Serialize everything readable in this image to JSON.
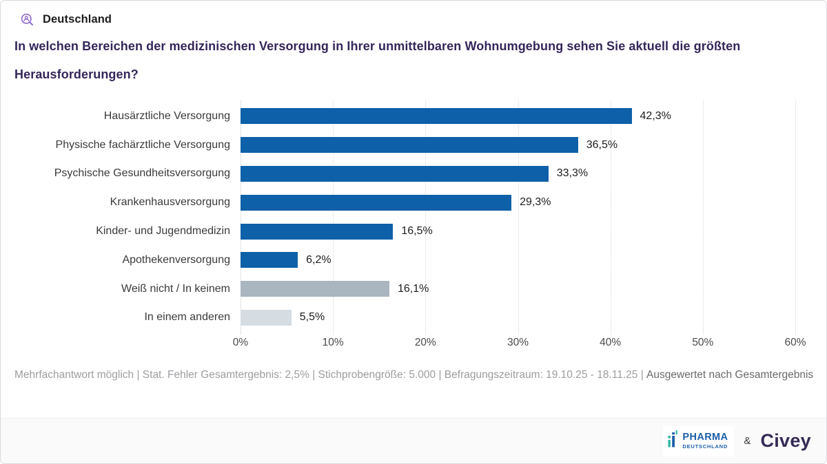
{
  "header": {
    "region_label": "Deutschland"
  },
  "question": {
    "title": "In welchen Bereichen der medizinischen Versorgung in Ihrer unmittelbaren Wohnumgebung sehen Sie aktuell die größten Herausforderungen?"
  },
  "chart_data": {
    "type": "bar",
    "orientation": "horizontal",
    "title": "In welchen Bereichen der medizinischen Versorgung in Ihrer unmittelbaren Wohnumgebung sehen Sie aktuell die größten Herausforderungen?",
    "categories": [
      "Hausärztliche Versorgung",
      "Physische fachärztliche Versorgung",
      "Psychische Gesundheitsversorgung",
      "Krankenhausversorgung",
      "Kinder- und Jugendmedizin",
      "Apothekenversorgung",
      "Weiß nicht / In keinem",
      "In einem anderen"
    ],
    "values": [
      42.3,
      36.5,
      33.3,
      29.3,
      16.5,
      6.2,
      16.1,
      5.5
    ],
    "value_labels": [
      "42,3%",
      "36,5%",
      "33,3%",
      "29,3%",
      "16,5%",
      "6,2%",
      "16,1%",
      "5,5%"
    ],
    "bar_colors": [
      "#0e60a8",
      "#0e60a8",
      "#0e60a8",
      "#0e60a8",
      "#0e60a8",
      "#0e60a8",
      "#a9b5bf",
      "#d5dde3"
    ],
    "xlim": [
      0,
      60
    ],
    "x_ticks": [
      "0%",
      "10%",
      "20%",
      "30%",
      "40%",
      "50%",
      "60%"
    ],
    "grid": "vertical-dotted",
    "xlabel": "",
    "ylabel": ""
  },
  "footer": {
    "meta": "Mehrfachantwort möglich | Stat. Fehler Gesamtergebnis: 2,5% | Stichprobengröße: 5.000 | Befragungszeitraum: 19.10.25 - 18.11.25 | ",
    "evaluated_by": "Ausgewertet nach Gesamtergebnis"
  },
  "branding": {
    "pharma_top": "PHARMA",
    "pharma_bottom": "DEUTSCHLAND",
    "ampersand": "&",
    "civey": "Civey"
  },
  "colors": {
    "accent_blue": "#0e60a8",
    "neutral_bar": "#a9b5bf",
    "light_neutral_bar": "#d5dde3",
    "title_purple": "#35265a",
    "icon_purple": "#8a63c9",
    "pharma_blue": "#1d5fa8",
    "pharma_teal": "#2fb3a3",
    "civey_purple": "#362a55"
  }
}
